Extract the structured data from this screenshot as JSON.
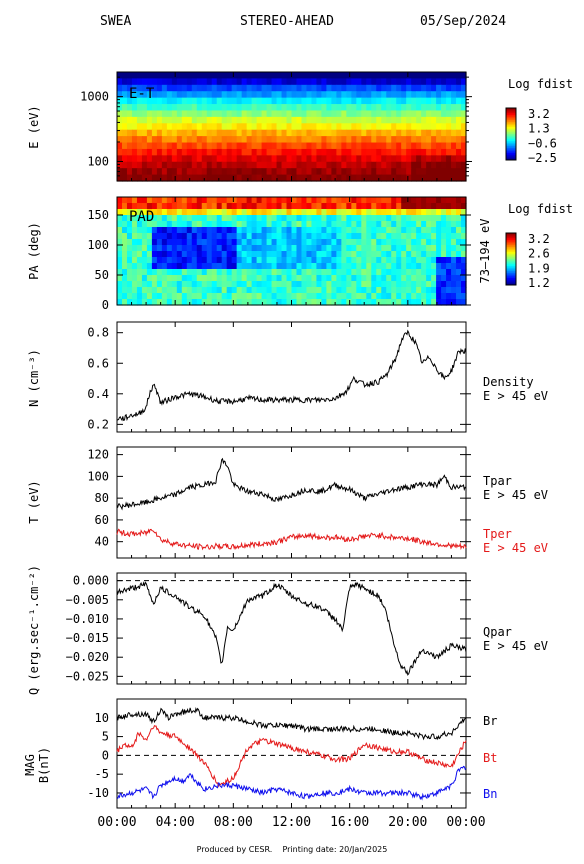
{
  "header": {
    "instrument": "SWEA",
    "spacecraft": "STEREO-AHEAD",
    "date": "05/Sep/2024"
  },
  "footer": {
    "produced": "Produced by CESR.",
    "printing": "Printing date: 20/Jan/2025"
  },
  "x_ticks": [
    "00:00",
    "04:00",
    "08:00",
    "12:00",
    "16:00",
    "20:00",
    "00:00"
  ],
  "colors": {
    "black": "#000000",
    "red": "#e41a1a",
    "blue": "#1010ee"
  },
  "chart_data": [
    {
      "type": "heatmap",
      "panel_label": "E-T",
      "ylabel": "E (eV)",
      "yscale": "log",
      "ylim": [
        50,
        2400
      ],
      "yticks": [
        {
          "v": 100,
          "label": "100"
        },
        {
          "v": 1000,
          "label": "1000"
        }
      ],
      "colorbar": {
        "title": "Log fdist",
        "ticks": [
          "3.2",
          "1.3",
          "−0.6",
          "−2.5"
        ],
        "range": [
          -2.5,
          3.2
        ]
      },
      "row_energies_eV": [
        2000,
        1600,
        1250,
        1000,
        800,
        630,
        500,
        400,
        320,
        250,
        200,
        160,
        125,
        100,
        80,
        63,
        50
      ],
      "row_levels": [
        -2.7,
        -2.0,
        -1.4,
        -0.9,
        -0.4,
        0.0,
        0.4,
        0.8,
        1.1,
        1.5,
        1.8,
        2.1,
        2.4,
        2.65,
        2.85,
        3.05,
        3.25
      ]
    },
    {
      "type": "heatmap",
      "panel_label": "PAD",
      "ylabel": "PA (deg)",
      "ylim": [
        0,
        180
      ],
      "yticks": [
        0,
        50,
        100,
        150
      ],
      "energy_range_label": "73–194 eV",
      "colorbar": {
        "title": "Log fdist",
        "ticks": [
          "3.2",
          "2.6",
          "1.9",
          "1.2"
        ],
        "range": [
          1.2,
          3.2
        ]
      }
    },
    {
      "type": "line",
      "ylabel": "N (cm⁻³)",
      "ylim": [
        0.15,
        0.87
      ],
      "yticks": [
        0.2,
        0.4,
        0.6,
        0.8
      ],
      "series": [
        {
          "name": "Density",
          "label_line2": "E > 45 eV",
          "color": "#000000",
          "x": [
            0,
            0.5,
            1,
            1.5,
            2,
            2.3,
            2.6,
            3,
            4,
            5,
            6,
            7,
            8,
            9,
            10,
            11,
            12,
            13,
            14,
            15,
            15.8,
            16.3,
            17,
            18,
            18.6,
            19.2,
            19.6,
            20,
            20.5,
            21,
            21.5,
            22,
            22.5,
            23,
            23.5,
            24
          ],
          "y": [
            0.24,
            0.24,
            0.26,
            0.27,
            0.31,
            0.42,
            0.46,
            0.34,
            0.38,
            0.4,
            0.38,
            0.35,
            0.35,
            0.37,
            0.36,
            0.36,
            0.36,
            0.36,
            0.36,
            0.37,
            0.42,
            0.5,
            0.46,
            0.48,
            0.53,
            0.64,
            0.76,
            0.8,
            0.74,
            0.6,
            0.64,
            0.56,
            0.5,
            0.55,
            0.68,
            0.68
          ]
        }
      ]
    },
    {
      "type": "line",
      "ylabel": "T (eV)",
      "ylim": [
        25,
        127
      ],
      "yticks": [
        40,
        60,
        80,
        100,
        120
      ],
      "series": [
        {
          "name": "Tpar",
          "label_line2": "E > 45 eV",
          "color": "#000000",
          "x": [
            0,
            1,
            2,
            3,
            4,
            5,
            6,
            6.8,
            7.2,
            7.6,
            8,
            9,
            10,
            11,
            12,
            13,
            14,
            15,
            16,
            17,
            18,
            19,
            20,
            21,
            22,
            22.5,
            23,
            24
          ],
          "y": [
            72,
            74,
            76,
            80,
            83,
            90,
            92,
            96,
            115,
            110,
            92,
            86,
            84,
            78,
            83,
            88,
            86,
            92,
            88,
            80,
            84,
            88,
            90,
            93,
            92,
            100,
            90,
            90
          ]
        },
        {
          "name": "Tper",
          "label_line2": "E > 45 eV",
          "color": "#e41a1a",
          "x": [
            0,
            1,
            2,
            2.5,
            3,
            4,
            5,
            6,
            7,
            8,
            9,
            10,
            11,
            12,
            13,
            14,
            15,
            16,
            17,
            18,
            19,
            20,
            21,
            22,
            23,
            24
          ],
          "y": [
            49,
            47,
            48,
            52,
            42,
            38,
            36,
            35,
            36,
            35,
            37,
            38,
            40,
            44,
            46,
            44,
            44,
            42,
            45,
            46,
            44,
            43,
            40,
            38,
            36,
            35
          ]
        }
      ]
    },
    {
      "type": "line",
      "ylabel": "Q (erg.sec⁻¹.cm⁻²)",
      "ylim": [
        -0.027,
        0.002
      ],
      "yticks": [
        {
          "v": 0,
          "label": "0.000"
        },
        {
          "v": -0.005,
          "label": "−0.005"
        },
        {
          "v": -0.01,
          "label": "−0.010"
        },
        {
          "v": -0.015,
          "label": "−0.015"
        },
        {
          "v": -0.02,
          "label": "−0.020"
        },
        {
          "v": -0.025,
          "label": "−0.025"
        }
      ],
      "zero_line": 0,
      "series": [
        {
          "name": "Qpar",
          "label_line2": "E > 45 eV",
          "color": "#000000",
          "x": [
            0,
            1,
            2,
            2.5,
            3,
            4,
            5,
            6,
            6.8,
            7.2,
            7.6,
            8,
            9,
            10,
            11,
            12,
            13,
            14,
            15,
            15.5,
            16,
            16.5,
            17,
            18,
            18.5,
            19,
            19.5,
            20,
            21,
            22,
            23,
            24
          ],
          "y": [
            -0.003,
            -0.002,
            -0.001,
            -0.006,
            -0.002,
            -0.004,
            -0.007,
            -0.009,
            -0.015,
            -0.022,
            -0.012,
            -0.013,
            -0.005,
            -0.004,
            -0.001,
            -0.004,
            -0.006,
            -0.007,
            -0.01,
            -0.013,
            -0.002,
            -0.001,
            -0.002,
            -0.004,
            -0.008,
            -0.016,
            -0.022,
            -0.024,
            -0.018,
            -0.02,
            -0.017,
            -0.018
          ]
        }
      ]
    },
    {
      "type": "line",
      "ylabel": "MAG B(nT)",
      "ylim": [
        -14,
        15
      ],
      "yticks": [
        -10,
        -5,
        0,
        5,
        10
      ],
      "zero_line": 0,
      "series": [
        {
          "name": "Br",
          "color": "#000000",
          "x": [
            0,
            1,
            2,
            2.5,
            3,
            3.5,
            4,
            5,
            5.5,
            6,
            7,
            8,
            9,
            10,
            11,
            12,
            13,
            14,
            15,
            16,
            17,
            18,
            19,
            20,
            21,
            22,
            23,
            23.5,
            24
          ],
          "y": [
            10,
            11,
            11,
            9,
            12,
            10,
            11,
            12,
            12,
            10,
            10,
            10,
            9,
            8,
            8,
            8,
            7,
            7,
            7,
            7,
            7,
            7,
            6,
            6,
            5,
            5,
            6,
            8,
            10
          ]
        },
        {
          "name": "Bt",
          "color": "#e41a1a",
          "x": [
            0,
            0.5,
            1,
            1.5,
            2,
            2.5,
            3,
            4,
            5,
            6,
            7,
            8,
            9,
            10,
            11,
            12,
            13,
            14,
            15,
            16,
            17,
            18,
            19,
            20,
            21,
            22,
            23,
            24
          ],
          "y": [
            1,
            3,
            2,
            6,
            4,
            8,
            6,
            5,
            2,
            -2,
            -8,
            -6,
            2,
            4,
            3,
            2,
            1,
            0,
            -1,
            -1,
            3,
            2,
            1,
            1,
            -1,
            -2,
            -3,
            4
          ]
        },
        {
          "name": "Bn",
          "color": "#1010ee",
          "x": [
            0,
            1,
            2,
            2.5,
            3,
            4,
            4.5,
            5,
            6,
            7,
            8,
            9,
            10,
            11,
            12,
            13,
            14,
            15,
            16,
            17,
            18,
            19,
            20,
            21,
            22,
            23,
            23.5,
            24
          ],
          "y": [
            -11,
            -10,
            -9,
            -11,
            -8,
            -6,
            -7,
            -5,
            -9,
            -8,
            -8,
            -9,
            -10,
            -9,
            -10,
            -11,
            -10,
            -10,
            -9,
            -10,
            -10,
            -10,
            -10,
            -11,
            -10,
            -8,
            -4,
            -3
          ]
        }
      ]
    }
  ]
}
